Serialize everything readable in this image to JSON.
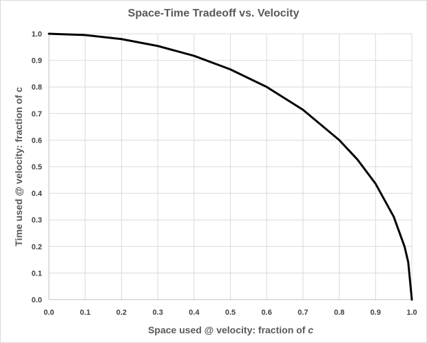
{
  "chart_data": {
    "type": "line",
    "title": "Space-Time Tradeoff vs. Velocity",
    "xlabel": "Space used @ velocity: fraction of",
    "xlabel_variable": "c",
    "ylabel": "Time used @ velocity: fraction of c",
    "xlim": [
      0.0,
      1.0
    ],
    "ylim": [
      0.0,
      1.0
    ],
    "x_ticks": [
      "0.0",
      "0.1",
      "0.2",
      "0.3",
      "0.4",
      "0.5",
      "0.6",
      "0.7",
      "0.8",
      "0.9",
      "1.0"
    ],
    "y_ticks": [
      "0.0",
      "0.1",
      "0.2",
      "0.3",
      "0.4",
      "0.5",
      "0.6",
      "0.7",
      "0.8",
      "0.9",
      "1.0"
    ],
    "grid": true,
    "line_color": "#000000",
    "series": [
      {
        "x": [
          0.0,
          0.1,
          0.2,
          0.3,
          0.4,
          0.5,
          0.6,
          0.7,
          0.8,
          0.85,
          0.9,
          0.95,
          0.98,
          0.99,
          1.0
        ],
        "y": [
          1.0,
          0.995,
          0.98,
          0.954,
          0.917,
          0.866,
          0.8,
          0.714,
          0.6,
          0.527,
          0.436,
          0.312,
          0.199,
          0.141,
          0.0
        ]
      }
    ]
  }
}
